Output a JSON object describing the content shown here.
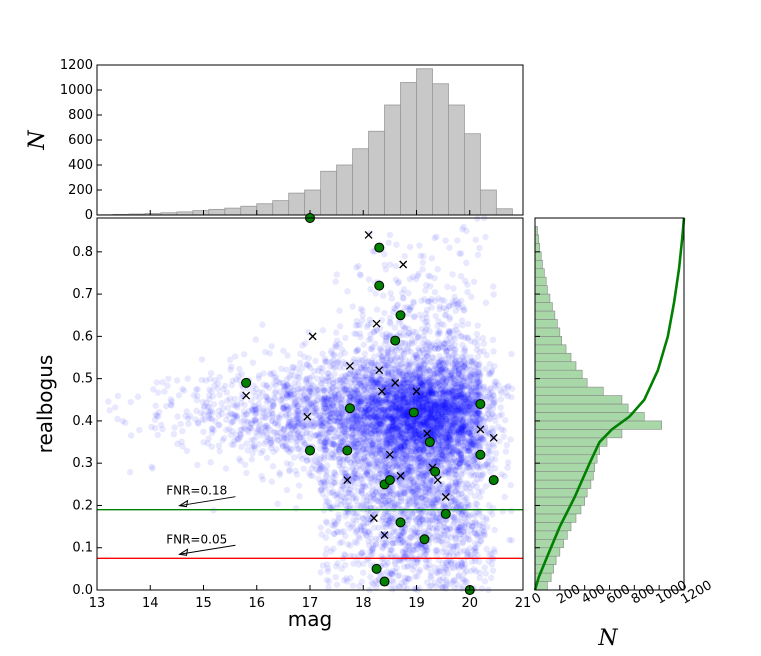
{
  "chart_data": [
    {
      "id": "main_scatter",
      "type": "scatter",
      "xlabel": "mag",
      "ylabel": "realbogus",
      "xlim": [
        13,
        21
      ],
      "ylim": [
        0.0,
        0.88
      ],
      "xticks": [
        "13",
        "14",
        "15",
        "16",
        "17",
        "18",
        "19",
        "20",
        "21"
      ],
      "yticks": [
        "0.0",
        "0.1",
        "0.2",
        "0.3",
        "0.4",
        "0.5",
        "0.6",
        "0.7",
        "0.8"
      ],
      "grid": false,
      "background_cloud": {
        "color": "#0000ff",
        "approx_count": 7000,
        "description_x_range": [
          13.2,
          20.9
        ],
        "density_peak": [
          19.0,
          0.42
        ]
      },
      "green_points": {
        "color": "#008000",
        "points": [
          [
            15.8,
            0.49
          ],
          [
            17.0,
            0.33
          ],
          [
            17.0,
            0.88
          ],
          [
            17.75,
            0.43
          ],
          [
            17.7,
            0.33
          ],
          [
            18.3,
            0.81
          ],
          [
            18.3,
            0.72
          ],
          [
            18.7,
            0.65
          ],
          [
            18.6,
            0.59
          ],
          [
            18.95,
            0.42
          ],
          [
            19.25,
            0.35
          ],
          [
            18.4,
            0.25
          ],
          [
            18.5,
            0.26
          ],
          [
            19.35,
            0.28
          ],
          [
            20.2,
            0.44
          ],
          [
            20.2,
            0.32
          ],
          [
            20.45,
            0.26
          ],
          [
            19.55,
            0.18
          ],
          [
            18.7,
            0.16
          ],
          [
            19.15,
            0.12
          ],
          [
            18.25,
            0.05
          ],
          [
            18.4,
            0.02
          ],
          [
            20.0,
            0.0
          ]
        ]
      },
      "cross_points": {
        "color": "#000000",
        "points": [
          [
            18.1,
            0.84
          ],
          [
            18.75,
            0.77
          ],
          [
            17.05,
            0.6
          ],
          [
            18.25,
            0.63
          ],
          [
            17.75,
            0.53
          ],
          [
            18.3,
            0.52
          ],
          [
            18.6,
            0.49
          ],
          [
            18.35,
            0.47
          ],
          [
            19.0,
            0.47
          ],
          [
            15.8,
            0.46
          ],
          [
            16.95,
            0.41
          ],
          [
            20.2,
            0.38
          ],
          [
            20.45,
            0.36
          ],
          [
            19.2,
            0.37
          ],
          [
            18.5,
            0.32
          ],
          [
            19.3,
            0.29
          ],
          [
            18.7,
            0.27
          ],
          [
            19.4,
            0.26
          ],
          [
            17.7,
            0.26
          ],
          [
            19.55,
            0.22
          ],
          [
            18.2,
            0.17
          ],
          [
            18.4,
            0.13
          ],
          [
            20.0,
            0.0
          ]
        ]
      },
      "threshold_lines": [
        {
          "label": "FNR=0.18",
          "y": 0.19,
          "color": "#008000"
        },
        {
          "label": "FNR=0.05",
          "y": 0.075,
          "color": "#ff0000"
        }
      ]
    },
    {
      "id": "top_histogram",
      "type": "bar",
      "ylabel": "N",
      "xlim": [
        13,
        21
      ],
      "ylim": [
        0,
        1200
      ],
      "yticks": [
        "0",
        "200",
        "400",
        "600",
        "800",
        "1000",
        "1200"
      ],
      "bar_color": "#c8c8c8",
      "bin_edges": [
        13.0,
        13.3,
        13.6,
        13.9,
        14.2,
        14.5,
        14.8,
        15.1,
        15.4,
        15.7,
        16.0,
        16.3,
        16.6,
        16.9,
        17.2,
        17.5,
        17.8,
        18.1,
        18.4,
        18.7,
        19.0,
        19.3,
        19.6,
        19.9,
        20.2,
        20.5,
        20.8
      ],
      "values": [
        2,
        5,
        8,
        12,
        18,
        25,
        35,
        45,
        55,
        70,
        90,
        115,
        175,
        200,
        350,
        400,
        530,
        670,
        880,
        1060,
        1170,
        1050,
        880,
        650,
        200,
        50
      ]
    },
    {
      "id": "right_histogram",
      "type": "bar",
      "orientation": "horizontal",
      "xlabel": "N",
      "xlim": [
        0,
        1200
      ],
      "ylim": [
        0.0,
        0.88
      ],
      "xticks": [
        "0",
        "200",
        "400",
        "600",
        "800",
        "1000",
        "1200"
      ],
      "bar_color": "#a8d8a8",
      "bin_edges": [
        0.0,
        0.02,
        0.04,
        0.06,
        0.08,
        0.1,
        0.12,
        0.14,
        0.16,
        0.18,
        0.2,
        0.22,
        0.24,
        0.26,
        0.28,
        0.3,
        0.32,
        0.34,
        0.36,
        0.38,
        0.4,
        0.42,
        0.44,
        0.46,
        0.48,
        0.5,
        0.52,
        0.54,
        0.56,
        0.58,
        0.6,
        0.62,
        0.64,
        0.66,
        0.68,
        0.7,
        0.72,
        0.74,
        0.76,
        0.78,
        0.8,
        0.82,
        0.84,
        0.86
      ],
      "values": [
        100,
        130,
        150,
        170,
        200,
        230,
        260,
        290,
        330,
        370,
        400,
        420,
        450,
        470,
        480,
        500,
        520,
        580,
        700,
        1020,
        880,
        750,
        700,
        550,
        420,
        380,
        330,
        290,
        250,
        215,
        200,
        180,
        160,
        140,
        120,
        100,
        90,
        75,
        60,
        50,
        38,
        30,
        20
      ],
      "cumulative_curve": {
        "color": "#008000",
        "points": [
          [
            0,
            0.0
          ],
          [
            30,
            0.03
          ],
          [
            100,
            0.08
          ],
          [
            200,
            0.15
          ],
          [
            320,
            0.22
          ],
          [
            440,
            0.3
          ],
          [
            520,
            0.35
          ],
          [
            620,
            0.38
          ],
          [
            760,
            0.41
          ],
          [
            880,
            0.45
          ],
          [
            990,
            0.52
          ],
          [
            1070,
            0.6
          ],
          [
            1120,
            0.68
          ],
          [
            1160,
            0.76
          ],
          [
            1185,
            0.83
          ],
          [
            1200,
            0.88
          ]
        ]
      }
    }
  ]
}
